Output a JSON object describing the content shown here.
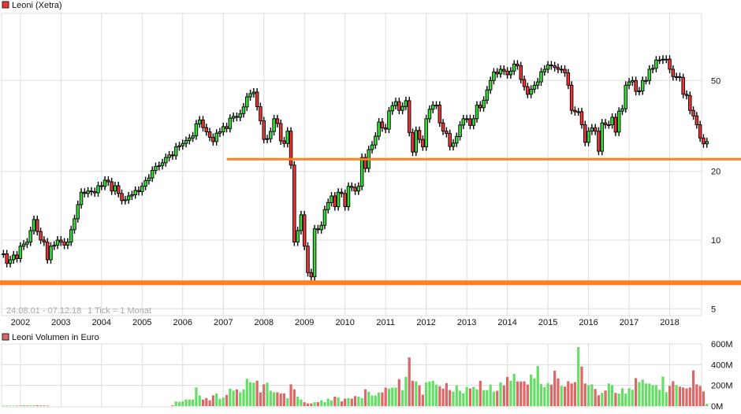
{
  "chart_data": [
    {
      "type": "candlestick",
      "title": "Leoni (Xetra)",
      "legend_color": "#ee3333",
      "range_text": "24.08.01 - 07.12.18",
      "tick_text": "1 Tick = 1 Monat",
      "interval": "monthly",
      "start_month": "2001-08",
      "y_scale": "log",
      "ylim": [
        4.6,
        100
      ],
      "y_ticks": [
        5,
        10,
        20,
        50
      ],
      "x_ticks": [
        "2002",
        "2003",
        "2004",
        "2005",
        "2006",
        "2007",
        "2008",
        "2009",
        "2010",
        "2011",
        "2012",
        "2013",
        "2014",
        "2015",
        "2016",
        "2017",
        "2018"
      ],
      "grid": true,
      "up_color": "#33dd33",
      "down_color": "#ee3333",
      "close": [
        8.7,
        7.9,
        8.2,
        8.6,
        8.3,
        9.4,
        9.6,
        9.8,
        11.0,
        12.3,
        10.9,
        10.0,
        9.8,
        8.2,
        9.4,
        9.5,
        10.0,
        9.8,
        9.5,
        9.8,
        11.1,
        12.4,
        14.3,
        16.2,
        16.0,
        16.4,
        16.3,
        16.1,
        17.3,
        17.2,
        18.3,
        18.0,
        16.4,
        17.3,
        16.0,
        14.9,
        15.0,
        15.6,
        15.8,
        16.5,
        16.3,
        17.2,
        18.2,
        18.7,
        20.2,
        21.0,
        21.2,
        21.8,
        23.0,
        23.6,
        23.4,
        25.6,
        25.9,
        26.5,
        27.3,
        28.0,
        28.6,
        32.3,
        33.6,
        31.1,
        29.8,
        28.2,
        27.0,
        29.4,
        29.8,
        31.4,
        30.8,
        34.2,
        34.8,
        34.5,
        35.8,
        38.3,
        42.4,
        43.8,
        44.5,
        38.4,
        33.3,
        27.6,
        27.8,
        29.9,
        34.0,
        32.4,
        27.2,
        26.5,
        30.0,
        21.3,
        9.8,
        11.0,
        12.9,
        9.4,
        7.2,
        6.9,
        11.2,
        11.1,
        11.6,
        13.6,
        14.6,
        15.6,
        14.0,
        16.2,
        16.0,
        14.0,
        17.2,
        17.0,
        16.4,
        17.2,
        23.0,
        20.6,
        24.9,
        26.1,
        28.5,
        32.9,
        31.0,
        30.6,
        36.8,
        38.8,
        40.4,
        37.0,
        38.5,
        40.8,
        29.6,
        24.3,
        30.2,
        27.6,
        25.6,
        34.0,
        37.4,
        39.0,
        39.0,
        32.6,
        30.0,
        29.3,
        25.7,
        26.6,
        28.4,
        31.9,
        34.0,
        34.0,
        31.8,
        34.0,
        39.0,
        38.0,
        41.0,
        45.5,
        50.0,
        54.5,
        53.5,
        56.0,
        55.0,
        53.0,
        55.0,
        59.0,
        58.0,
        50.5,
        47.0,
        43.5,
        45.8,
        47.7,
        49.3,
        54.6,
        56.0,
        58.5,
        58.0,
        57.0,
        56.0,
        56.0,
        54.0,
        47.7,
        37.0,
        36.5,
        36.5,
        32.0,
        26.8,
        30.0,
        31.0,
        30.0,
        24.5,
        32.6,
        32.0,
        32.0,
        34.5,
        29.7,
        36.7,
        37.6,
        47.7,
        49.3,
        50.0,
        44.8,
        45.0,
        50.0,
        50.0,
        56.0,
        56.5,
        61.5,
        61.5,
        62.0,
        62.0,
        56.0,
        52.0,
        52.0,
        51.5,
        43.5,
        43.0,
        37.0,
        35.0,
        32.0,
        28.0,
        26.4,
        27.0
      ],
      "horizontal_lines": [
        {
          "value": 22.6,
          "from": "2007-02",
          "color": "#ff8020"
        },
        {
          "value": 6.5,
          "from": "2001-08",
          "color": "#ff8020"
        }
      ]
    },
    {
      "type": "bar",
      "title": "Leoni Volumen in Euro",
      "legend_color": "#dd6666",
      "start_month": "2001-08",
      "unit": "M",
      "ylim": [
        0,
        600
      ],
      "y_ticks": [
        "0M",
        "200M",
        "400M",
        "600M"
      ],
      "up_color": "#66dd66",
      "down_color": "#dd6666",
      "values": [
        5,
        4,
        5,
        5,
        4,
        6,
        8,
        8,
        7,
        8,
        8,
        6,
        5,
        5,
        0,
        0,
        0,
        0,
        0,
        0,
        0,
        0,
        0,
        0,
        0,
        0,
        0,
        0,
        0,
        0,
        0,
        0,
        0,
        0,
        0,
        0,
        0,
        0,
        0,
        0,
        0,
        0,
        0,
        0,
        0,
        0,
        0,
        0,
        0,
        0,
        8,
        46,
        41,
        46,
        64,
        64,
        64,
        180,
        103,
        64,
        77,
        56,
        103,
        123,
        72,
        85,
        108,
        169,
        149,
        162,
        133,
        162,
        264,
        231,
        226,
        246,
        133,
        210,
        226,
        149,
        133,
        133,
        123,
        123,
        77,
        210,
        162,
        92,
        64,
        38,
        26,
        26,
        38,
        38,
        56,
        38,
        72,
        56,
        92,
        85,
        46,
        72,
        77,
        72,
        97,
        92,
        77,
        162,
        138,
        102,
        102,
        132,
        132,
        178,
        170,
        178,
        178,
        260,
        155,
        282,
        470,
        245,
        238,
        200,
        110,
        230,
        238,
        245,
        208,
        192,
        170,
        222,
        155,
        140,
        200,
        148,
        125,
        185,
        170,
        185,
        162,
        245,
        155,
        155,
        208,
        140,
        148,
        230,
        200,
        282,
        245,
        312,
        238,
        238,
        238,
        208,
        305,
        268,
        388,
        215,
        185,
        222,
        208,
        342,
        268,
        195,
        188,
        240,
        218,
        232,
        570,
        382,
        218,
        202,
        210,
        165,
        105,
        128,
        150,
        218,
        202,
        128,
        120,
        172,
        120,
        172,
        158,
        270,
        232,
        255,
        218,
        218,
        202,
        202,
        158,
        285,
        135,
        195,
        240,
        202,
        188,
        180,
        172,
        180,
        345,
        210,
        195,
        142,
        22
      ]
    }
  ]
}
